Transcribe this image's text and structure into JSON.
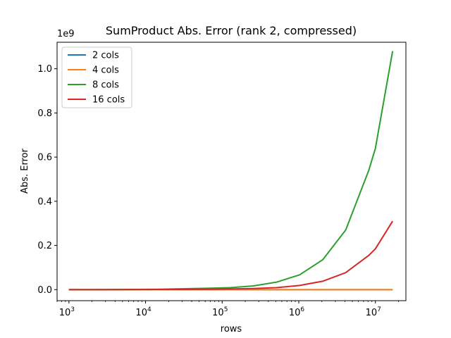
{
  "chart_data": {
    "type": "line",
    "title": "SumProduct Abs. Error (rank 2, compressed)",
    "xlabel": "rows",
    "ylabel": "Abs. Error",
    "x_scale": "log",
    "y_offset_label": "1e9",
    "xlim": [
      700,
      25000000
    ],
    "ylim": [
      -0.05,
      1.12
    ],
    "y_ticks": [
      0.0,
      0.2,
      0.4,
      0.6,
      0.8,
      1.0
    ],
    "y_tick_labels": [
      "0.0",
      "0.2",
      "0.4",
      "0.6",
      "0.8",
      "1.0"
    ],
    "x_ticks": [
      {
        "value": 1000,
        "base": "10",
        "exp": "3"
      },
      {
        "value": 10000,
        "base": "10",
        "exp": "4"
      },
      {
        "value": 100000,
        "base": "10",
        "exp": "5"
      },
      {
        "value": 1000000,
        "base": "10",
        "exp": "6"
      },
      {
        "value": 10000000,
        "base": "10",
        "exp": "7"
      }
    ],
    "grid": false,
    "legend_position": "top-left",
    "series": [
      {
        "name": "2 cols",
        "color": "#1f77b4",
        "x": [
          1000,
          2000,
          4000,
          8000,
          16000,
          32000,
          64000,
          128000,
          256000,
          512000,
          1024000,
          2048000,
          4096000,
          8192000,
          10000000,
          16777216
        ],
        "y": [
          0,
          0,
          0,
          0,
          0,
          0,
          0,
          0,
          0,
          0,
          0,
          0,
          0,
          0,
          0,
          0
        ]
      },
      {
        "name": "4 cols",
        "color": "#ff7f0e",
        "x": [
          1000,
          2000,
          4000,
          8000,
          16000,
          32000,
          64000,
          128000,
          256000,
          512000,
          1024000,
          2048000,
          4096000,
          8192000,
          10000000,
          16777216
        ],
        "y": [
          0,
          0,
          0,
          0,
          0,
          0,
          0,
          0,
          0,
          0,
          0,
          0,
          0,
          0,
          0,
          0
        ]
      },
      {
        "name": "8 cols",
        "color": "#2ca02c",
        "x": [
          1000,
          2000,
          4000,
          8000,
          16000,
          32000,
          64000,
          128000,
          256000,
          512000,
          1024000,
          2048000,
          4096000,
          8192000,
          10000000,
          16777216
        ],
        "y": [
          0.0,
          0.0,
          0.0005,
          0.001,
          0.002,
          0.004,
          0.006,
          0.009,
          0.017,
          0.034,
          0.067,
          0.135,
          0.27,
          0.54,
          0.64,
          1.08
        ]
      },
      {
        "name": "16 cols",
        "color": "#d62728",
        "x": [
          1000,
          2000,
          4000,
          8000,
          16000,
          32000,
          64000,
          128000,
          256000,
          512000,
          1024000,
          2048000,
          4096000,
          8192000,
          10000000,
          16777216
        ],
        "y": [
          0.0,
          0.0,
          0.0,
          0.0005,
          0.001,
          0.001,
          0.002,
          0.003,
          0.005,
          0.009,
          0.019,
          0.038,
          0.077,
          0.155,
          0.185,
          0.31
        ]
      }
    ]
  }
}
